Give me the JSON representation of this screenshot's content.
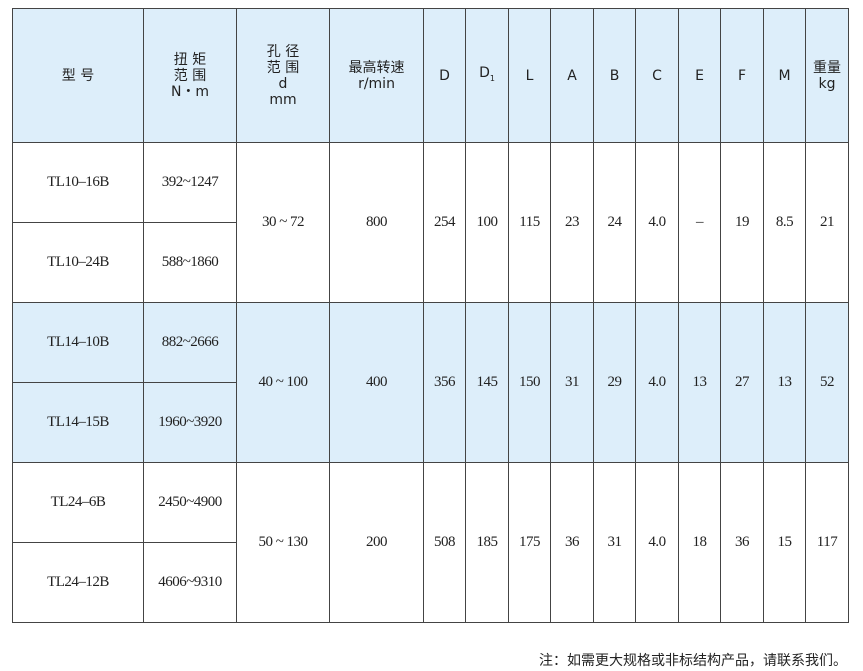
{
  "headers": {
    "model": "型 号",
    "torque": [
      "扭 矩",
      "范 围",
      "N・m"
    ],
    "bore": [
      "孔 径",
      "范 围",
      "d",
      "mm"
    ],
    "speed": [
      "最高转速",
      "r/min"
    ],
    "D": "D",
    "D1": "D",
    "D1_sub": "1",
    "L": "L",
    "A": "A",
    "B": "B",
    "C": "C",
    "E": "E",
    "F": "F",
    "M": "M",
    "weight": [
      "重量",
      "kg"
    ]
  },
  "groups": [
    {
      "rows": [
        {
          "model": "TL10–16B",
          "torque": "392~1247"
        },
        {
          "model": "TL10–24B",
          "torque": "588~1860"
        }
      ],
      "bore": "30 ~  72",
      "speed": "800",
      "D": "254",
      "D1": "100",
      "L": "115",
      "A": "23",
      "B": "24",
      "C": "4.0",
      "E": "–",
      "F": "19",
      "M": "8.5",
      "weight": "21"
    },
    {
      "rows": [
        {
          "model": "TL14–10B",
          "torque": "882~2666"
        },
        {
          "model": "TL14–15B",
          "torque": "1960~3920"
        }
      ],
      "bore": "40 ~ 100",
      "speed": "400",
      "D": "356",
      "D1": "145",
      "L": "150",
      "A": "31",
      "B": "29",
      "C": "4.0",
      "E": "13",
      "F": "27",
      "M": "13",
      "weight": "52"
    },
    {
      "rows": [
        {
          "model": "TL24–6B",
          "torque": "2450~4900"
        },
        {
          "model": "TL24–12B",
          "torque": "4606~9310"
        }
      ],
      "bore": "50 ~ 130",
      "speed": "200",
      "D": "508",
      "D1": "185",
      "L": "175",
      "A": "36",
      "B": "31",
      "C": "4.0",
      "E": "18",
      "F": "36",
      "M": "15",
      "weight": "117"
    }
  ],
  "note": "注：如需更大规格或非标结构产品，请联系我们。"
}
